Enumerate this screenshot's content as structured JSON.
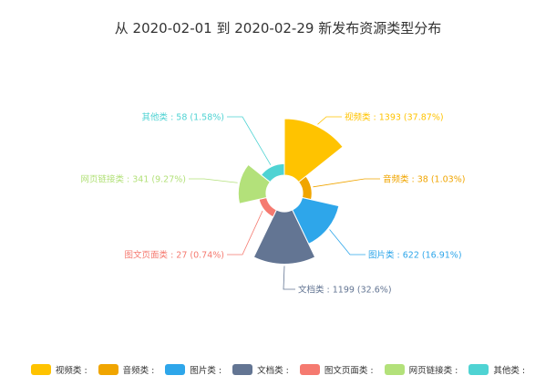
{
  "chart_data": {
    "type": "pie",
    "title": "从 2020-02-01 到 2020-02-29 新发布资源类型分布",
    "legend_position": "bottom",
    "slices": [
      {
        "name": "视频类",
        "value": 1393,
        "percent": "37.87%",
        "label": "视频类 : 1393 (37.87%)",
        "legend": "视频类 :",
        "color": "#ffc300"
      },
      {
        "name": "音频类",
        "value": 38,
        "percent": "1.03%",
        "label": "音频类 : 38 (1.03%)",
        "legend": "音频类 :",
        "color": "#f0a500"
      },
      {
        "name": "图片类",
        "value": 622,
        "percent": "16.91%",
        "label": "图片类 : 622 (16.91%)",
        "legend": "图片类 :",
        "color": "#2ea6ea"
      },
      {
        "name": "文档类",
        "value": 1199,
        "percent": "32.6%",
        "label": "文档类 : 1199 (32.6%)",
        "legend": "文档类 :",
        "color": "#637593"
      },
      {
        "name": "图文页面类",
        "value": 27,
        "percent": "0.74%",
        "label": "图文页面类 : 27 (0.74%)",
        "legend": "图文页面类 :",
        "color": "#f57a70"
      },
      {
        "name": "网页链接类",
        "value": 341,
        "percent": "9.27%",
        "label": "网页链接类 : 341 (9.27%)",
        "legend": "网页链接类 :",
        "color": "#b3e17a"
      },
      {
        "name": "其他类",
        "value": 58,
        "percent": "1.58%",
        "label": "其他类 : 58 (1.58%)",
        "legend": "其他类 :",
        "color": "#4fd3d3"
      }
    ]
  }
}
